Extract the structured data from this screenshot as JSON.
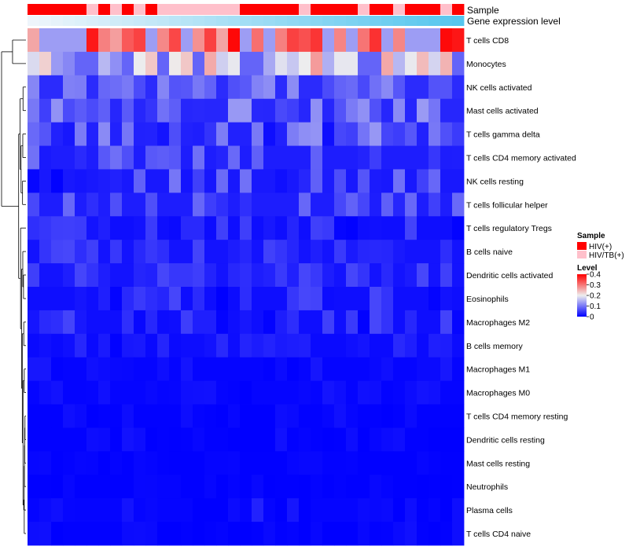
{
  "chart_data": {
    "type": "heatmap",
    "title": "",
    "row_clustering": "dendrogram on left",
    "annotations": [
      {
        "name": "Sample",
        "kind": "categorical"
      },
      {
        "name": "Gene expression level",
        "kind": "continuous"
      }
    ],
    "rows": [
      "T cells CD8",
      "Monocytes",
      "NK cells activated",
      "Mast cells activated",
      "T cells gamma delta",
      "T cells CD4 memory activated",
      "NK cells resting",
      "T cells follicular helper",
      "T cells regulatory  Tregs",
      "B cells naive",
      "Dendritic cells activated",
      "Eosinophils",
      "Macrophages M2",
      "B cells memory",
      "Macrophages M1",
      "Macrophages M0",
      "T cells CD4 memory resting",
      "Dendritic cells resting",
      "Mast cells resting",
      "Neutrophils",
      "Plasma cells",
      "T cells CD4 naive"
    ],
    "n_samples": 37,
    "sample_groups": [
      1,
      1,
      1,
      1,
      1,
      2,
      1,
      2,
      1,
      2,
      1,
      2,
      2,
      2,
      2,
      2,
      2,
      2,
      1,
      1,
      1,
      1,
      1,
      2,
      1,
      1,
      1,
      1,
      2,
      1,
      1,
      2,
      1,
      1,
      1,
      2,
      1
    ],
    "sample_group_names": {
      "1": "HIV(+)",
      "2": "HIV/TB(+)"
    },
    "gene_expression_level_range": [
      0,
      1
    ],
    "value_range": [
      0,
      0.4
    ],
    "row_value_profiles": [
      {
        "row": "T cells CD8",
        "mean": 0.33,
        "spread": 0.07
      },
      {
        "row": "Monocytes",
        "mean": 0.21,
        "spread": 0.1
      },
      {
        "row": "NK cells activated",
        "mean": 0.09,
        "spread": 0.03
      },
      {
        "row": "Mast cells activated",
        "mean": 0.08,
        "spread": 0.05
      },
      {
        "row": "T cells gamma delta",
        "mean": 0.07,
        "spread": 0.06
      },
      {
        "row": "T cells CD4 memory activated",
        "mean": 0.06,
        "spread": 0.04
      },
      {
        "row": "NK cells resting",
        "mean": 0.05,
        "spread": 0.05
      },
      {
        "row": "T cells follicular helper",
        "mean": 0.06,
        "spread": 0.03
      },
      {
        "row": "T cells regulatory  Tregs",
        "mean": 0.03,
        "spread": 0.03
      },
      {
        "row": "B cells naive",
        "mean": 0.04,
        "spread": 0.02
      },
      {
        "row": "Dendritic cells activated",
        "mean": 0.04,
        "spread": 0.02
      },
      {
        "row": "Eosinophils",
        "mean": 0.03,
        "spread": 0.03
      },
      {
        "row": "Macrophages M2",
        "mean": 0.03,
        "spread": 0.03
      },
      {
        "row": "B cells memory",
        "mean": 0.02,
        "spread": 0.02
      },
      {
        "row": "Macrophages M1",
        "mean": 0.01,
        "spread": 0.01
      },
      {
        "row": "Macrophages M0",
        "mean": 0.01,
        "spread": 0.01
      },
      {
        "row": "T cells CD4 memory resting",
        "mean": 0.005,
        "spread": 0.01
      },
      {
        "row": "Dendritic cells resting",
        "mean": 0.005,
        "spread": 0.01
      },
      {
        "row": "Mast cells resting",
        "mean": 0.003,
        "spread": 0.004
      },
      {
        "row": "Neutrophils",
        "mean": 0.003,
        "spread": 0.004
      },
      {
        "row": "Plasma cells",
        "mean": 0.01,
        "spread": 0.02
      },
      {
        "row": "T cells CD4 naive",
        "mean": 0.004,
        "spread": 0.01
      }
    ],
    "legend": {
      "sample_title": "Sample",
      "sample_entries": [
        {
          "label": "HIV(+)",
          "color": "#ff0000"
        },
        {
          "label": "HIV/TB(+)",
          "color": "#ffc0cb"
        }
      ],
      "level_title": "Level",
      "level_ticks": [
        "0.4",
        "0.3",
        "0.2",
        "0.1",
        "0"
      ],
      "level_tick_values": [
        0.4,
        0.3,
        0.2,
        0.1,
        0
      ],
      "placement": "right-middle"
    },
    "colors": {
      "low": "#0000ff",
      "mid": "#eeeeee",
      "high": "#ff0000",
      "gene_low": "#eef5fb",
      "gene_high": "#56c6ee"
    }
  }
}
